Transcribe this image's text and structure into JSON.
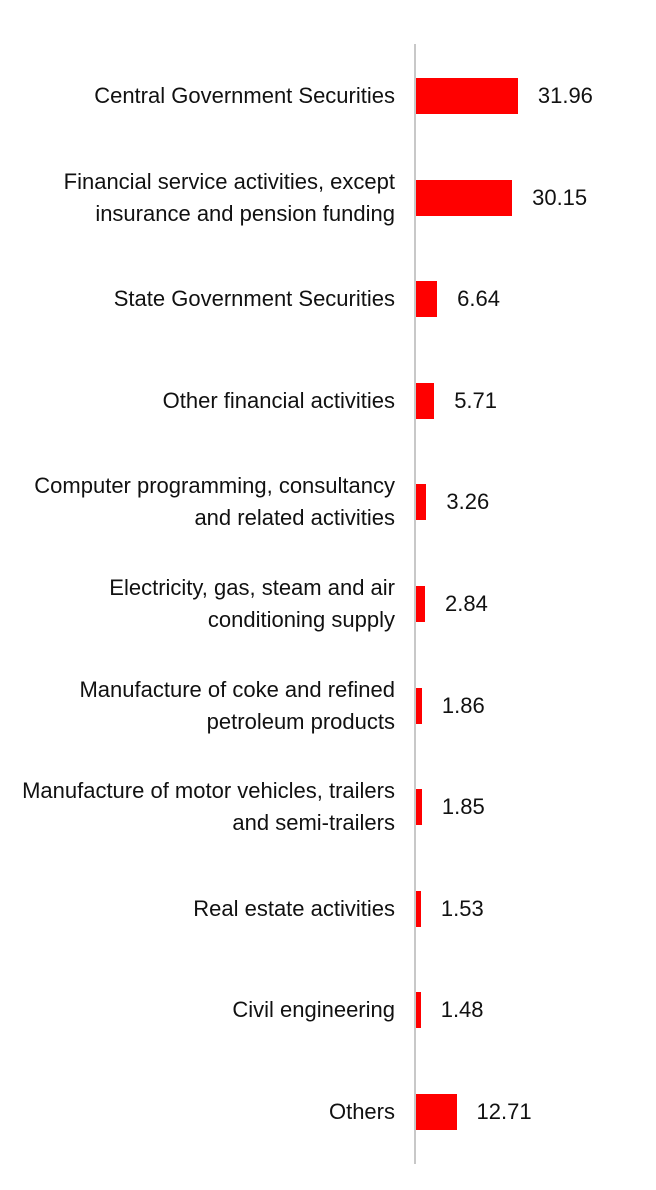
{
  "chart_data": {
    "type": "bar",
    "orientation": "horizontal",
    "categories": [
      "Central Government Securities",
      "Financial service activities, except insurance and pension funding",
      "State Government Securities",
      "Other financial activities",
      "Computer programming, consultancy and related activities",
      "Electricity, gas, steam and air conditioning supply",
      "Manufacture of coke and refined petroleum products",
      "Manufacture of motor vehicles, trailers and semi-trailers",
      "Real estate activities",
      "Civil engineering",
      "Others"
    ],
    "values": [
      31.96,
      30.15,
      6.64,
      5.71,
      3.26,
      2.84,
      1.86,
      1.85,
      1.53,
      1.48,
      12.71
    ],
    "value_labels": [
      "31.96",
      "30.15",
      "6.64",
      "5.71",
      "3.26",
      "2.84",
      "1.86",
      "1.85",
      "1.53",
      "1.48",
      "12.71"
    ],
    "xlim": [
      0,
      32
    ],
    "bar_color": "#ff0000",
    "axis_color": "#c8c8c8",
    "grid": false,
    "legend": "none"
  }
}
